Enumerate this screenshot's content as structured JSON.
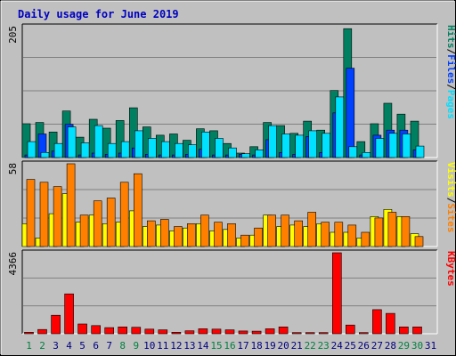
{
  "title": "Daily usage for June 2019",
  "colors": {
    "title": "#0000c0",
    "frame_bg": "#c0c0c0",
    "grid": "#808080",
    "hits": "#008060",
    "files": "#0040ff",
    "pages": "#00e0ff",
    "visits": "#ffff00",
    "sites": "#ff8000",
    "kbytes": "#ff0000",
    "weekday": "#008040",
    "day": "#000080"
  },
  "chart_data": [
    {
      "type": "bar",
      "panel": "hits-files-pages",
      "y_max_label": "205",
      "ylim": [
        0,
        205
      ],
      "legend": [
        {
          "key": "pages",
          "label": "Pages"
        },
        {
          "key": "sep",
          "label": "/"
        },
        {
          "key": "files",
          "label": "Files"
        },
        {
          "key": "sep",
          "label": "/"
        },
        {
          "key": "hits",
          "label": "Hits"
        }
      ],
      "categories": [
        "1",
        "2",
        "3",
        "4",
        "5",
        "6",
        "7",
        "8",
        "9",
        "10",
        "11",
        "12",
        "13",
        "14",
        "15",
        "16",
        "17",
        "18",
        "19",
        "20",
        "21",
        "22",
        "23",
        "24",
        "25",
        "26",
        "27",
        "28",
        "29",
        "30",
        "31"
      ],
      "series": [
        {
          "name": "Hits",
          "color_key": "hits",
          "values": [
            53,
            55,
            40,
            73,
            32,
            60,
            46,
            58,
            78,
            48,
            35,
            37,
            27,
            45,
            42,
            22,
            7,
            17,
            55,
            50,
            38,
            57,
            43,
            105,
            202,
            25,
            53,
            85,
            68,
            57,
            0
          ]
        },
        {
          "name": "Files",
          "color_key": "files",
          "values": [
            4,
            37,
            10,
            52,
            4,
            7,
            5,
            7,
            15,
            5,
            4,
            4,
            5,
            13,
            4,
            4,
            5,
            4,
            28,
            8,
            5,
            33,
            8,
            70,
            140,
            4,
            35,
            43,
            43,
            12,
            0
          ]
        },
        {
          "name": "Pages",
          "color_key": "pages",
          "values": [
            25,
            8,
            22,
            48,
            23,
            50,
            22,
            25,
            42,
            30,
            25,
            22,
            20,
            40,
            30,
            15,
            6,
            12,
            50,
            37,
            35,
            42,
            38,
            95,
            17,
            8,
            30,
            38,
            37,
            18,
            0
          ]
        }
      ]
    },
    {
      "type": "bar",
      "panel": "visits-sites",
      "y_max_label": "58",
      "ylim": [
        0,
        58
      ],
      "legend": [
        {
          "key": "sites",
          "label": "Sites"
        },
        {
          "key": "sep",
          "label": "/"
        },
        {
          "key": "visits",
          "label": "Visits"
        }
      ],
      "categories": [
        "1",
        "2",
        "3",
        "4",
        "5",
        "6",
        "7",
        "8",
        "9",
        "10",
        "11",
        "12",
        "13",
        "14",
        "15",
        "16",
        "17",
        "18",
        "19",
        "20",
        "21",
        "22",
        "23",
        "24",
        "25",
        "26",
        "27",
        "28",
        "29",
        "30",
        "31"
      ],
      "series": [
        {
          "name": "Visits",
          "color_key": "visits",
          "values": [
            16,
            6,
            23,
            37,
            17,
            22,
            16,
            17,
            25,
            14,
            15,
            11,
            13,
            16,
            11,
            12,
            6,
            8,
            22,
            14,
            15,
            14,
            16,
            10,
            10,
            6,
            21,
            26,
            21,
            9,
            0
          ]
        },
        {
          "name": "Sites",
          "color_key": "sites",
          "values": [
            47,
            45,
            42,
            58,
            22,
            32,
            34,
            45,
            51,
            18,
            19,
            14,
            16,
            22,
            17,
            16,
            8,
            13,
            22,
            22,
            18,
            24,
            17,
            17,
            15,
            10,
            20,
            24,
            21,
            7,
            0
          ]
        }
      ]
    },
    {
      "type": "bar",
      "panel": "kbytes",
      "y_max_label": "4366",
      "ylim": [
        0,
        4366
      ],
      "legend": [
        {
          "key": "kbytes",
          "label": "KBytes"
        }
      ],
      "categories": [
        "1",
        "2",
        "3",
        "4",
        "5",
        "6",
        "7",
        "8",
        "9",
        "10",
        "11",
        "12",
        "13",
        "14",
        "15",
        "16",
        "17",
        "18",
        "19",
        "20",
        "21",
        "22",
        "23",
        "24",
        "25",
        "26",
        "27",
        "28",
        "29",
        "30",
        "31"
      ],
      "series": [
        {
          "name": "KBytes",
          "color_key": "kbytes",
          "values": [
            80,
            230,
            1000,
            2150,
            530,
            440,
            330,
            370,
            350,
            250,
            210,
            80,
            160,
            270,
            250,
            210,
            150,
            140,
            270,
            370,
            60,
            60,
            60,
            4366,
            470,
            60,
            1300,
            1100,
            370,
            370,
            0
          ]
        }
      ]
    }
  ],
  "x_axis": {
    "days": [
      "1",
      "2",
      "3",
      "4",
      "5",
      "6",
      "7",
      "8",
      "9",
      "10",
      "11",
      "12",
      "13",
      "14",
      "15",
      "16",
      "17",
      "18",
      "19",
      "20",
      "21",
      "22",
      "23",
      "24",
      "25",
      "26",
      "27",
      "28",
      "29",
      "30",
      "31"
    ],
    "weekend_days": [
      "1",
      "2",
      "8",
      "9",
      "15",
      "16",
      "22",
      "23",
      "29",
      "30"
    ]
  }
}
